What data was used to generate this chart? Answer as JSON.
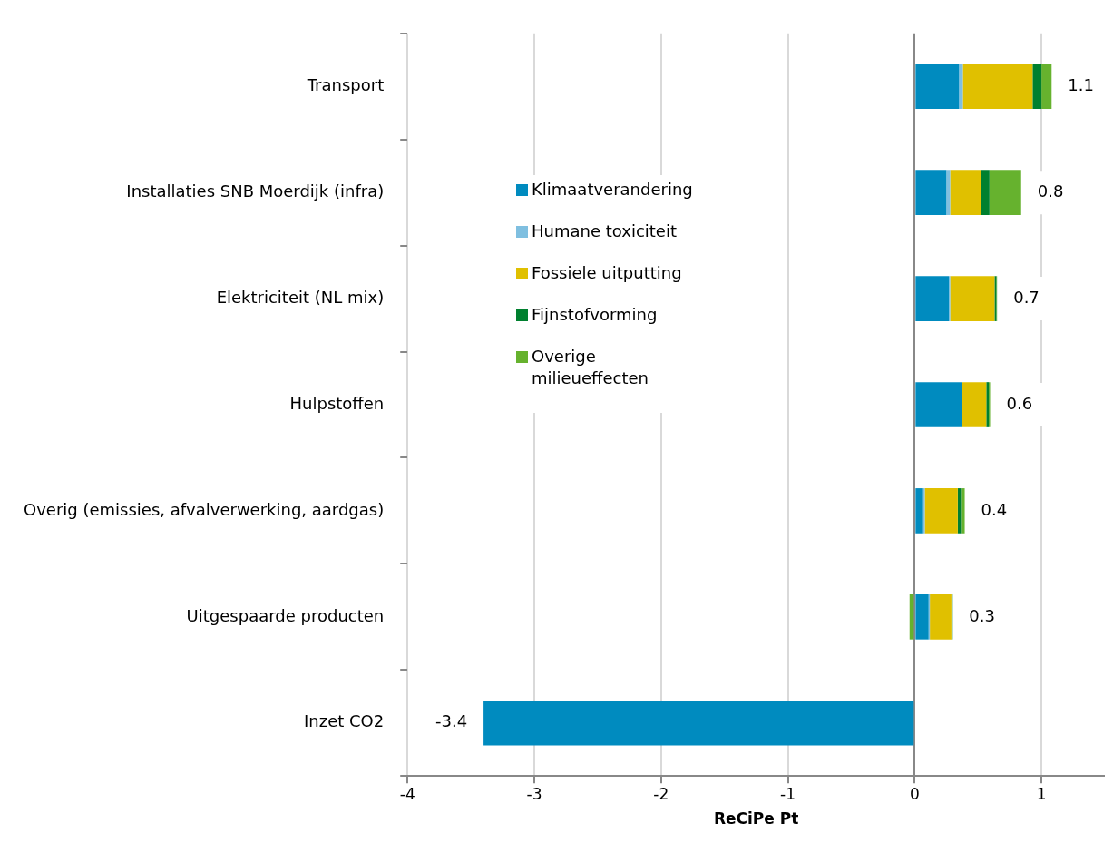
{
  "chart_data": {
    "type": "bar",
    "orientation": "horizontal",
    "stacked": true,
    "xlabel": "ReCiPe Pt",
    "categories": [
      "Transport",
      "Installaties SNB Moerdijk (infra)",
      "Elektriciteit (NL mix)",
      "Hulpstoffen",
      "Overig (emissies, afvalverwerking, aardgas)",
      "Uitgespaarde producten",
      "Inzet CO2"
    ],
    "series": [
      {
        "name": "Klimaatverandering",
        "color": "#008bbf",
        "values": [
          0.35,
          0.25,
          0.27,
          0.37,
          0.06,
          0.11,
          -3.4
        ]
      },
      {
        "name": "Humane toxiciteit",
        "color": "#7fbfe0",
        "values": [
          0.03,
          0.03,
          0.01,
          0.005,
          0.02,
          0.01,
          null
        ]
      },
      {
        "name": "Fossiele uitputting",
        "color": "#e0c000",
        "values": [
          0.55,
          0.24,
          0.35,
          0.19,
          0.26,
          0.17,
          null
        ]
      },
      {
        "name": "Fijnstofvorming",
        "color": "#00802f",
        "values": [
          0.07,
          0.07,
          0.015,
          0.02,
          0.025,
          0.01,
          null
        ]
      },
      {
        "name": "Overige milieueffecten",
        "color": "#66b22e",
        "values": [
          0.08,
          0.25,
          0.005,
          0.01,
          0.03,
          -0.04,
          null
        ]
      }
    ],
    "totals": [
      "1.1",
      "0.8",
      "0.7",
      "0.6",
      "0.4",
      "0.3",
      "-3.4"
    ],
    "xlim": [
      -4,
      1.5
    ],
    "xticks": [
      -4,
      -3,
      -2,
      -1,
      0,
      1
    ],
    "grid": "x",
    "legend": "left"
  }
}
